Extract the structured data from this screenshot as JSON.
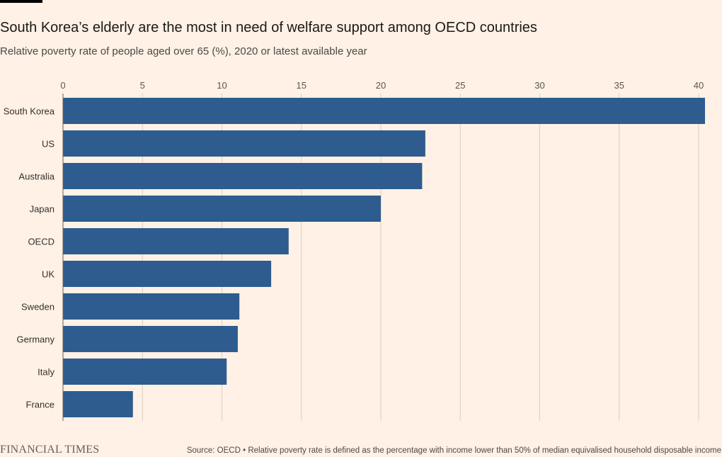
{
  "header": {
    "title": "South Korea’s elderly are the most in need of welfare support among OECD countries",
    "subtitle": "Relative poverty rate of people aged over 65 (%), 2020 or latest available year"
  },
  "footer": {
    "logo_text": "FINANCIAL TIMES",
    "source": "Source: OECD • Relative poverty rate is defined as the percentage with income lower than 50% of median equivalised household disposable income"
  },
  "colors": {
    "background": "#fff1e5",
    "bar": "#2e5c8f",
    "gridline": "#d9cdc2",
    "baseline": "#66605c"
  },
  "chart_data": {
    "type": "bar",
    "orientation": "horizontal",
    "categories": [
      "South Korea",
      "US",
      "Australia",
      "Japan",
      "OECD",
      "UK",
      "Sweden",
      "Germany",
      "Italy",
      "France"
    ],
    "values": [
      40.4,
      22.8,
      22.6,
      20.0,
      14.2,
      13.1,
      11.1,
      11.0,
      10.3,
      4.4
    ],
    "xlim": [
      0,
      40
    ],
    "xticks": [
      0,
      5,
      10,
      15,
      20,
      25,
      30,
      35,
      40
    ],
    "xaxis_position": "top",
    "grid": true
  }
}
